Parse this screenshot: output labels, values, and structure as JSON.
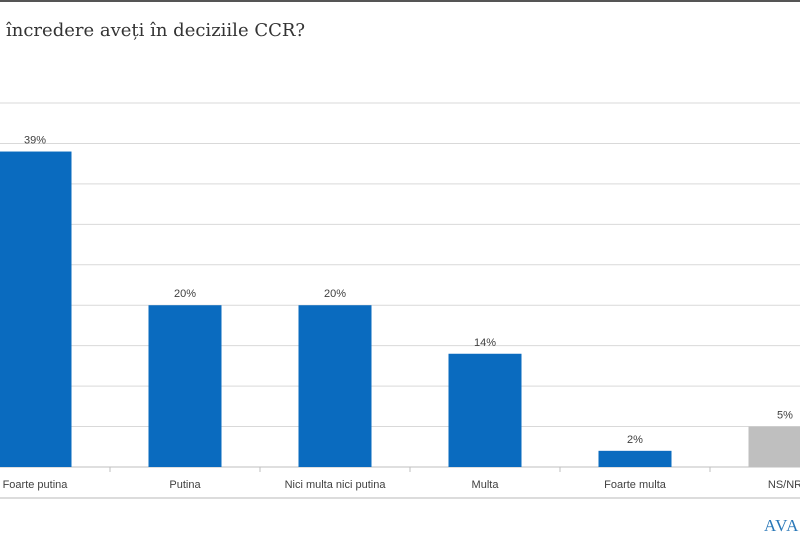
{
  "title": "încredere aveți în deciziile CCR?",
  "logo_text": "AVAN",
  "colors": {
    "bar": "#0a6bbf",
    "bar_ns": "#bfbfbf",
    "grid": "#d9d9d9",
    "text": "#404040"
  },
  "chart_data": {
    "type": "bar",
    "title": "încredere aveți în deciziile CCR?",
    "categories": [
      "Foarte putina",
      "Putina",
      "Nici multa nici putina",
      "Multa",
      "Foarte multa",
      "NS/NR"
    ],
    "values": [
      39,
      20,
      20,
      14,
      2,
      5
    ],
    "data_labels": [
      "39%",
      "20%",
      "20%",
      "14%",
      "2%",
      "5%"
    ],
    "bar_colors": [
      "#0a6bbf",
      "#0a6bbf",
      "#0a6bbf",
      "#0a6bbf",
      "#0a6bbf",
      "#bfbfbf"
    ],
    "ylim": [
      0,
      45
    ],
    "grid_step": 5,
    "grid": true,
    "y_axis_labels_shown": false,
    "xlabel": "",
    "ylabel": ""
  }
}
